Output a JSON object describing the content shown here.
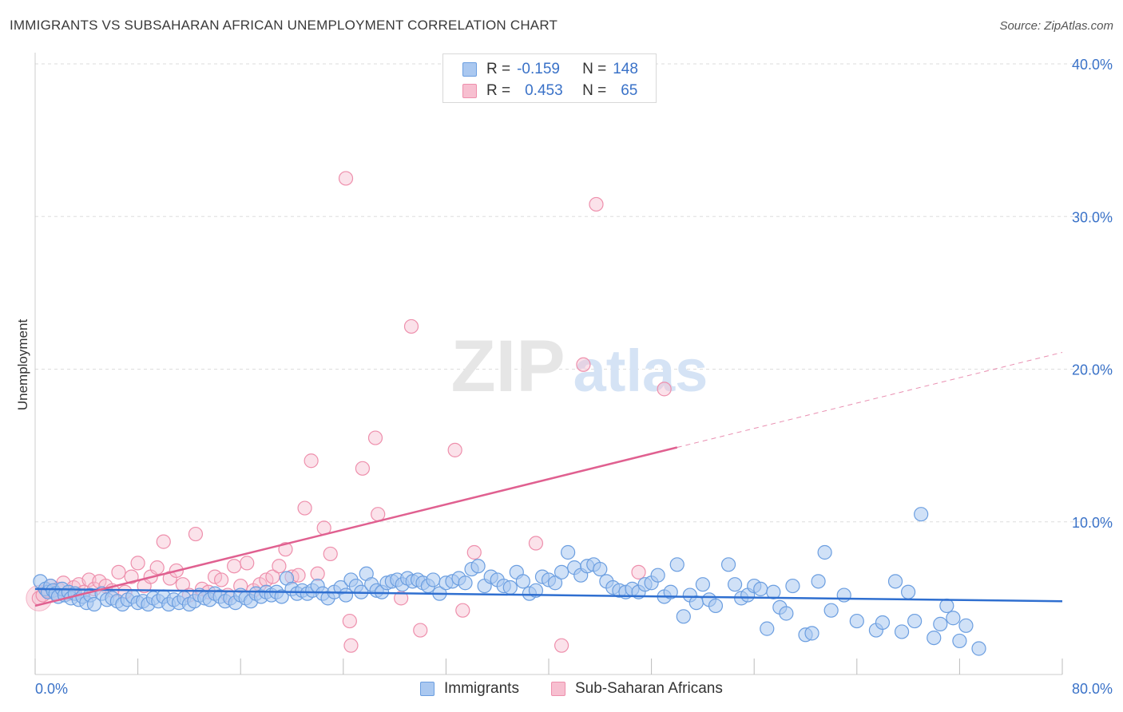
{
  "title": "IMMIGRANTS VS SUBSAHARAN AFRICAN UNEMPLOYMENT CORRELATION CHART",
  "source": "Source: ZipAtlas.com",
  "legend": {
    "r_label": "R =",
    "n_label": "N =",
    "series": [
      {
        "name": "Immigrants",
        "r": "-0.159",
        "n": "148"
      },
      {
        "name": "Sub-Saharan Africans",
        "r": "0.453",
        "n": "65"
      }
    ]
  },
  "watermark": {
    "zip": "ZIP",
    "atlas": "atlas"
  },
  "colors": {
    "immigrants_fill": "#aac8f0",
    "immigrants_stroke": "#6b9ee0",
    "immigrants_line": "#2f6fd0",
    "ssa_fill": "#f7bfd0",
    "ssa_stroke": "#ee8fac",
    "ssa_line": "#e06090",
    "axis_text": "#3a72c8",
    "grid": "#dddddd"
  },
  "chart_data": {
    "type": "scatter",
    "title": "IMMIGRANTS VS SUBSAHARAN AFRICAN UNEMPLOYMENT CORRELATION CHART",
    "xlabel": "",
    "ylabel": "Unemployment",
    "xlim": [
      0,
      80
    ],
    "ylim": [
      0,
      40
    ],
    "x_tick_labels": [
      "0.0%",
      "80.0%"
    ],
    "y_ticks": [
      10,
      20,
      30,
      40
    ],
    "y_tick_labels": [
      "10.0%",
      "20.0%",
      "30.0%",
      "40.0%"
    ],
    "grid": true,
    "legend_position": "top-center",
    "series": [
      {
        "name": "Immigrants",
        "r": -0.159,
        "n": 148,
        "trend": {
          "x": [
            0,
            80
          ],
          "y": [
            5.6,
            4.8
          ],
          "dashed_from": null
        },
        "points": [
          [
            0.4,
            6.1
          ],
          [
            0.8,
            5.6
          ],
          [
            1.0,
            5.4
          ],
          [
            1.2,
            5.8
          ],
          [
            1.4,
            5.5
          ],
          [
            1.6,
            5.3
          ],
          [
            1.8,
            5.1
          ],
          [
            2.1,
            5.6
          ],
          [
            2.3,
            5.2
          ],
          [
            2.6,
            5.4
          ],
          [
            2.8,
            5.0
          ],
          [
            3.1,
            5.3
          ],
          [
            3.4,
            4.9
          ],
          [
            3.7,
            5.1
          ],
          [
            4.0,
            4.7
          ],
          [
            4.3,
            5.2
          ],
          [
            4.6,
            4.6
          ],
          [
            5.2,
            5.3
          ],
          [
            5.6,
            4.9
          ],
          [
            6.0,
            5.0
          ],
          [
            6.4,
            4.8
          ],
          [
            6.8,
            4.6
          ],
          [
            7.2,
            4.9
          ],
          [
            7.6,
            5.1
          ],
          [
            8.0,
            4.7
          ],
          [
            8.4,
            4.8
          ],
          [
            8.8,
            4.6
          ],
          [
            9.2,
            5.0
          ],
          [
            9.6,
            4.8
          ],
          [
            10.0,
            5.1
          ],
          [
            10.4,
            4.6
          ],
          [
            10.8,
            4.9
          ],
          [
            11.2,
            4.7
          ],
          [
            11.6,
            5.0
          ],
          [
            12.0,
            4.6
          ],
          [
            12.4,
            4.8
          ],
          [
            12.8,
            5.2
          ],
          [
            13.2,
            5.0
          ],
          [
            13.6,
            4.9
          ],
          [
            14.0,
            5.3
          ],
          [
            14.4,
            5.1
          ],
          [
            14.8,
            4.8
          ],
          [
            15.2,
            5.0
          ],
          [
            15.6,
            4.7
          ],
          [
            16.0,
            5.2
          ],
          [
            16.4,
            5.0
          ],
          [
            16.8,
            4.8
          ],
          [
            17.2,
            5.3
          ],
          [
            17.6,
            5.1
          ],
          [
            18.0,
            5.4
          ],
          [
            18.4,
            5.2
          ],
          [
            18.8,
            5.4
          ],
          [
            19.2,
            5.1
          ],
          [
            19.6,
            6.3
          ],
          [
            20.0,
            5.6
          ],
          [
            20.4,
            5.3
          ],
          [
            20.8,
            5.5
          ],
          [
            21.2,
            5.3
          ],
          [
            21.6,
            5.5
          ],
          [
            22.0,
            5.8
          ],
          [
            22.4,
            5.3
          ],
          [
            22.8,
            5.0
          ],
          [
            23.3,
            5.4
          ],
          [
            23.8,
            5.7
          ],
          [
            24.2,
            5.2
          ],
          [
            24.6,
            6.2
          ],
          [
            25.0,
            5.8
          ],
          [
            25.4,
            5.4
          ],
          [
            25.8,
            6.6
          ],
          [
            26.2,
            5.9
          ],
          [
            26.6,
            5.5
          ],
          [
            27.0,
            5.4
          ],
          [
            27.4,
            6.0
          ],
          [
            27.8,
            6.1
          ],
          [
            28.2,
            6.2
          ],
          [
            28.6,
            5.9
          ],
          [
            29.0,
            6.3
          ],
          [
            29.4,
            6.1
          ],
          [
            29.8,
            6.2
          ],
          [
            30.2,
            6.0
          ],
          [
            30.6,
            5.8
          ],
          [
            31.0,
            6.2
          ],
          [
            31.5,
            5.3
          ],
          [
            32.0,
            6.0
          ],
          [
            32.5,
            6.1
          ],
          [
            33.0,
            6.3
          ],
          [
            33.5,
            6.0
          ],
          [
            34.0,
            6.9
          ],
          [
            34.5,
            7.1
          ],
          [
            35.0,
            5.8
          ],
          [
            35.5,
            6.4
          ],
          [
            36.0,
            6.2
          ],
          [
            36.5,
            5.8
          ],
          [
            37.0,
            5.7
          ],
          [
            37.5,
            6.7
          ],
          [
            38.0,
            6.1
          ],
          [
            38.5,
            5.3
          ],
          [
            39.0,
            5.5
          ],
          [
            39.5,
            6.4
          ],
          [
            40.0,
            6.2
          ],
          [
            40.5,
            6.0
          ],
          [
            41.0,
            6.7
          ],
          [
            41.5,
            8.0
          ],
          [
            42.0,
            7.0
          ],
          [
            42.5,
            6.5
          ],
          [
            43.0,
            7.1
          ],
          [
            43.5,
            7.2
          ],
          [
            44.0,
            6.9
          ],
          [
            44.5,
            6.1
          ],
          [
            45.0,
            5.7
          ],
          [
            45.5,
            5.5
          ],
          [
            46.0,
            5.4
          ],
          [
            46.5,
            5.6
          ],
          [
            47.0,
            5.4
          ],
          [
            47.5,
            5.9
          ],
          [
            48.0,
            6.0
          ],
          [
            48.5,
            6.5
          ],
          [
            49.0,
            5.1
          ],
          [
            49.5,
            5.4
          ],
          [
            50.0,
            7.2
          ],
          [
            50.5,
            3.8
          ],
          [
            51.0,
            5.2
          ],
          [
            51.5,
            4.7
          ],
          [
            52.0,
            5.9
          ],
          [
            52.5,
            4.9
          ],
          [
            53.0,
            4.5
          ],
          [
            54.0,
            7.2
          ],
          [
            54.5,
            5.9
          ],
          [
            55.0,
            5.0
          ],
          [
            55.5,
            5.2
          ],
          [
            56.0,
            5.8
          ],
          [
            56.5,
            5.6
          ],
          [
            57.0,
            3.0
          ],
          [
            57.5,
            5.4
          ],
          [
            58.0,
            4.4
          ],
          [
            58.5,
            4.0
          ],
          [
            59.0,
            5.8
          ],
          [
            60.0,
            2.6
          ],
          [
            60.5,
            2.7
          ],
          [
            61.0,
            6.1
          ],
          [
            61.5,
            8.0
          ],
          [
            62.0,
            4.2
          ],
          [
            63.0,
            5.2
          ],
          [
            64.0,
            3.5
          ],
          [
            65.5,
            2.9
          ],
          [
            66.0,
            3.4
          ],
          [
            67.0,
            6.1
          ],
          [
            67.5,
            2.8
          ],
          [
            68.0,
            5.4
          ],
          [
            68.5,
            3.5
          ],
          [
            69.0,
            10.5
          ],
          [
            70.0,
            2.4
          ],
          [
            70.5,
            3.3
          ],
          [
            71.0,
            4.5
          ],
          [
            71.5,
            3.7
          ],
          [
            72.0,
            2.2
          ],
          [
            72.5,
            3.2
          ],
          [
            73.5,
            1.7
          ]
        ]
      },
      {
        "name": "Sub-Saharan Africans",
        "r": 0.453,
        "n": 65,
        "trend": {
          "x": [
            0,
            80
          ],
          "y": [
            4.5,
            21.1
          ],
          "dashed_from": 50
        },
        "points": [
          [
            0.3,
            5.0
          ],
          [
            0.6,
            5.2
          ],
          [
            0.9,
            5.5
          ],
          [
            1.2,
            5.8
          ],
          [
            1.5,
            5.4
          ],
          [
            1.8,
            5.6
          ],
          [
            2.2,
            6.0
          ],
          [
            2.6,
            5.3
          ],
          [
            3.0,
            5.7
          ],
          [
            3.4,
            5.9
          ],
          [
            3.8,
            5.4
          ],
          [
            4.2,
            6.2
          ],
          [
            4.6,
            5.6
          ],
          [
            5.0,
            6.1
          ],
          [
            5.5,
            5.8
          ],
          [
            6.0,
            5.5
          ],
          [
            6.5,
            6.7
          ],
          [
            7.0,
            5.4
          ],
          [
            7.5,
            6.4
          ],
          [
            8.0,
            7.3
          ],
          [
            8.5,
            5.8
          ],
          [
            9.0,
            6.4
          ],
          [
            9.5,
            7.0
          ],
          [
            10.0,
            8.7
          ],
          [
            10.5,
            6.3
          ],
          [
            11.0,
            6.8
          ],
          [
            11.5,
            5.9
          ],
          [
            12.0,
            5.2
          ],
          [
            12.5,
            9.2
          ],
          [
            13.0,
            5.6
          ],
          [
            13.5,
            5.4
          ],
          [
            14.0,
            6.4
          ],
          [
            14.5,
            6.2
          ],
          [
            15.0,
            5.2
          ],
          [
            15.5,
            7.1
          ],
          [
            16.0,
            5.8
          ],
          [
            16.5,
            7.3
          ],
          [
            17.0,
            5.5
          ],
          [
            17.5,
            5.9
          ],
          [
            18.0,
            6.2
          ],
          [
            18.5,
            6.4
          ],
          [
            19.0,
            7.1
          ],
          [
            19.5,
            8.2
          ],
          [
            20.0,
            6.4
          ],
          [
            20.5,
            6.5
          ],
          [
            21.0,
            10.9
          ],
          [
            21.5,
            14.0
          ],
          [
            22.0,
            6.6
          ],
          [
            22.5,
            9.6
          ],
          [
            23.0,
            7.9
          ],
          [
            24.2,
            32.5
          ],
          [
            24.6,
            1.9
          ],
          [
            24.5,
            3.5
          ],
          [
            25.5,
            13.5
          ],
          [
            26.5,
            15.5
          ],
          [
            26.7,
            10.5
          ],
          [
            28.5,
            5.0
          ],
          [
            29.3,
            22.8
          ],
          [
            30.0,
            2.9
          ],
          [
            32.7,
            14.7
          ],
          [
            33.3,
            4.2
          ],
          [
            34.2,
            8.0
          ],
          [
            39.0,
            8.6
          ],
          [
            41.0,
            1.9
          ],
          [
            42.7,
            20.3
          ],
          [
            43.7,
            30.8
          ],
          [
            47.0,
            6.7
          ],
          [
            49.0,
            18.7
          ]
        ]
      }
    ]
  }
}
